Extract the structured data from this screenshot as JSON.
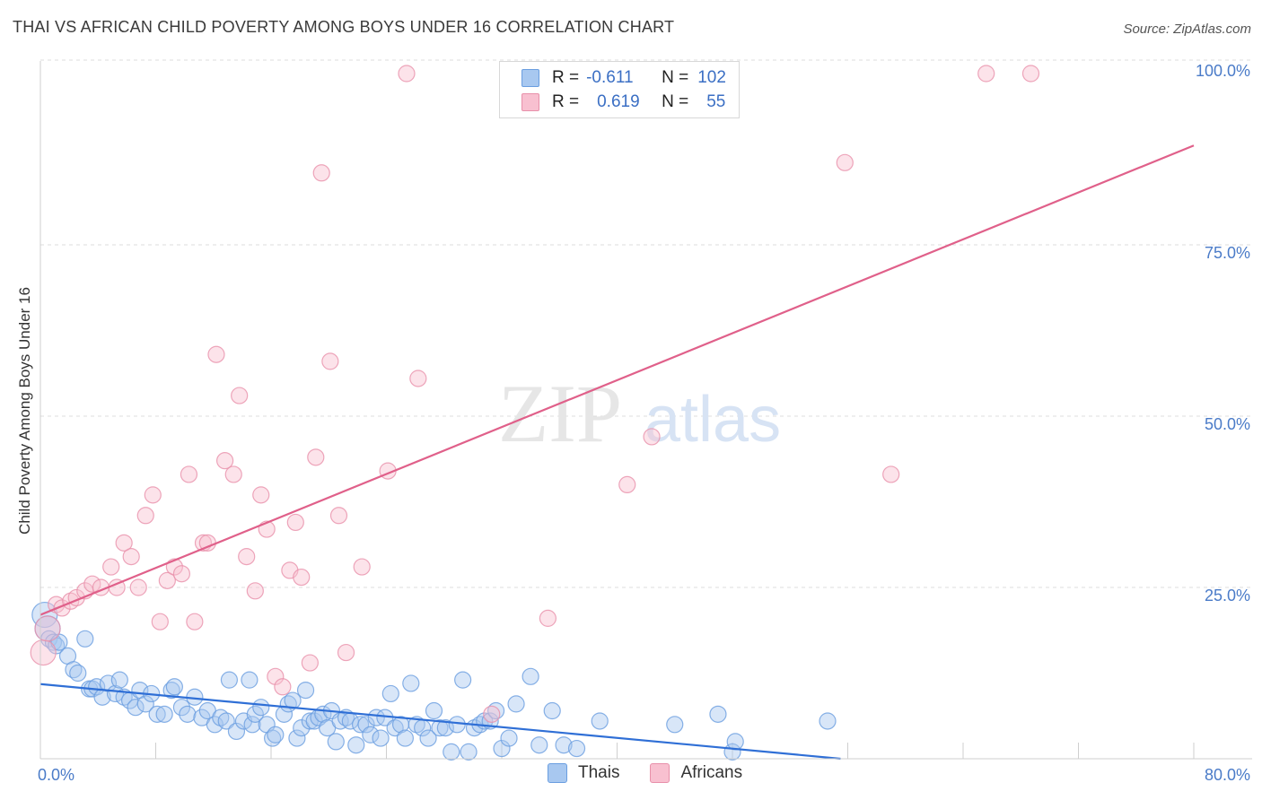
{
  "title": "THAI VS AFRICAN CHILD POVERTY AMONG BOYS UNDER 16 CORRELATION CHART",
  "source": "Source: ZipAtlas.com",
  "watermark": {
    "zip": "ZIP",
    "atlas": "atlas"
  },
  "legend_top": {
    "r_label": "R =",
    "n_label": "N =",
    "rows": [
      {
        "r": "-0.611",
        "n": "102",
        "color": "#a8c8f0",
        "border": "#6a9ee0"
      },
      {
        "r": "0.619",
        "n": "55",
        "color": "#f8c0d0",
        "border": "#e890aa"
      }
    ]
  },
  "legend_bottom": [
    {
      "label": "Thais",
      "color": "#a8c8f0",
      "border": "#6a9ee0"
    },
    {
      "label": "Africans",
      "color": "#f8c0d0",
      "border": "#e890aa"
    }
  ],
  "chart_data": {
    "type": "scatter",
    "title": "THAI VS AFRICAN CHILD POVERTY AMONG BOYS UNDER 16 CORRELATION CHART",
    "xlabel": "",
    "ylabel": "Child Poverty Among Boys Under 16",
    "xlim": [
      0,
      80
    ],
    "ylim": [
      0,
      100
    ],
    "x_tick_labels": [
      "0.0%",
      "80.0%"
    ],
    "y_ticks": [
      25,
      50,
      75,
      100
    ],
    "y_tick_labels": [
      "25.0%",
      "50.0%",
      "75.0%",
      "100.0%"
    ],
    "grid": true,
    "series": [
      {
        "name": "Thais",
        "color": "#6a9ee0",
        "fill": "#a8c8f0",
        "line_color": "#2f6fd6",
        "trend": [
          [
            0,
            10.9
          ],
          [
            55.5,
            0
          ]
        ],
        "points": [
          [
            0.3,
            21
          ],
          [
            0.5,
            19
          ],
          [
            0.6,
            17.5
          ],
          [
            0.9,
            17
          ],
          [
            1.1,
            16.5
          ],
          [
            1.3,
            17
          ],
          [
            1.9,
            15
          ],
          [
            2.3,
            13
          ],
          [
            2.6,
            12.5
          ],
          [
            3.1,
            17.5
          ],
          [
            3.4,
            10.2
          ],
          [
            3.6,
            10.2
          ],
          [
            3.9,
            10.5
          ],
          [
            4.3,
            9
          ],
          [
            4.7,
            11
          ],
          [
            5.2,
            9.5
          ],
          [
            5.5,
            11.5
          ],
          [
            5.8,
            9
          ],
          [
            6.2,
            8.5
          ],
          [
            6.6,
            7.5
          ],
          [
            6.9,
            10
          ],
          [
            7.3,
            8
          ],
          [
            7.7,
            9.5
          ],
          [
            8.1,
            6.5
          ],
          [
            8.6,
            6.5
          ],
          [
            9.1,
            10
          ],
          [
            9.3,
            10.5
          ],
          [
            9.8,
            7.5
          ],
          [
            10.2,
            6.5
          ],
          [
            10.7,
            9
          ],
          [
            11.2,
            6
          ],
          [
            11.6,
            7
          ],
          [
            12.1,
            5
          ],
          [
            12.5,
            6
          ],
          [
            12.9,
            5.5
          ],
          [
            13.1,
            11.5
          ],
          [
            13.6,
            4
          ],
          [
            14.1,
            5.5
          ],
          [
            14.5,
            11.5
          ],
          [
            14.7,
            5
          ],
          [
            14.9,
            6.5
          ],
          [
            15.3,
            7.5
          ],
          [
            15.7,
            5
          ],
          [
            16.1,
            3
          ],
          [
            16.3,
            3.5
          ],
          [
            16.9,
            6.5
          ],
          [
            17.2,
            8
          ],
          [
            17.5,
            8.5
          ],
          [
            17.8,
            3
          ],
          [
            18.1,
            4.5
          ],
          [
            18.4,
            10
          ],
          [
            18.7,
            5.5
          ],
          [
            19.0,
            5.5
          ],
          [
            19.3,
            6
          ],
          [
            19.6,
            6.5
          ],
          [
            19.9,
            4.5
          ],
          [
            20.2,
            7
          ],
          [
            20.5,
            2.5
          ],
          [
            20.8,
            5.5
          ],
          [
            21.2,
            6
          ],
          [
            21.5,
            5.5
          ],
          [
            21.9,
            2
          ],
          [
            22.2,
            5
          ],
          [
            22.6,
            5
          ],
          [
            22.9,
            3.5
          ],
          [
            23.3,
            6
          ],
          [
            23.6,
            3
          ],
          [
            23.9,
            6
          ],
          [
            24.3,
            9.5
          ],
          [
            24.6,
            4.5
          ],
          [
            25.0,
            5
          ],
          [
            25.3,
            3
          ],
          [
            25.7,
            11
          ],
          [
            26.1,
            5
          ],
          [
            26.5,
            4.5
          ],
          [
            26.9,
            3
          ],
          [
            27.3,
            7
          ],
          [
            27.7,
            4.5
          ],
          [
            28.1,
            4.5
          ],
          [
            28.5,
            1
          ],
          [
            28.9,
            5
          ],
          [
            29.3,
            11.5
          ],
          [
            29.7,
            1
          ],
          [
            30.1,
            4.5
          ],
          [
            30.5,
            5
          ],
          [
            30.8,
            5.5
          ],
          [
            31.2,
            5.5
          ],
          [
            31.6,
            7
          ],
          [
            32.0,
            1.5
          ],
          [
            32.5,
            3
          ],
          [
            33.0,
            8
          ],
          [
            34.0,
            12
          ],
          [
            34.6,
            2
          ],
          [
            35.5,
            7
          ],
          [
            36.3,
            2
          ],
          [
            37.2,
            1.5
          ],
          [
            38.8,
            5.5
          ],
          [
            44.0,
            5
          ],
          [
            47.0,
            6.5
          ],
          [
            48.0,
            1
          ],
          [
            48.2,
            2.5
          ],
          [
            54.6,
            5.5
          ]
        ]
      },
      {
        "name": "Africans",
        "color": "#e890aa",
        "fill": "#f8c0d0",
        "line_color": "#e0608a",
        "trend": [
          [
            0,
            21
          ],
          [
            80,
            89.5
          ]
        ],
        "points": [
          [
            0.2,
            15.5
          ],
          [
            0.5,
            19
          ],
          [
            1.1,
            22.5
          ],
          [
            1.5,
            22
          ],
          [
            2.1,
            23
          ],
          [
            2.5,
            23.5
          ],
          [
            3.1,
            24.5
          ],
          [
            3.6,
            25.5
          ],
          [
            4.2,
            25
          ],
          [
            4.9,
            28
          ],
          [
            5.3,
            25
          ],
          [
            5.8,
            31.5
          ],
          [
            6.3,
            29.5
          ],
          [
            6.8,
            25
          ],
          [
            7.3,
            35.5
          ],
          [
            7.8,
            38.5
          ],
          [
            8.3,
            20
          ],
          [
            8.8,
            26
          ],
          [
            9.3,
            28
          ],
          [
            9.8,
            27
          ],
          [
            10.3,
            41.5
          ],
          [
            10.7,
            20
          ],
          [
            11.3,
            31.5
          ],
          [
            11.6,
            31.5
          ],
          [
            12.2,
            59
          ],
          [
            12.8,
            43.5
          ],
          [
            13.4,
            41.5
          ],
          [
            13.8,
            53
          ],
          [
            14.3,
            29.5
          ],
          [
            14.9,
            24.5
          ],
          [
            15.3,
            38.5
          ],
          [
            15.7,
            33.5
          ],
          [
            16.3,
            12
          ],
          [
            16.8,
            10.5
          ],
          [
            17.3,
            27.5
          ],
          [
            17.7,
            34.5
          ],
          [
            18.1,
            26.5
          ],
          [
            18.7,
            14
          ],
          [
            19.1,
            44
          ],
          [
            19.5,
            85.5
          ],
          [
            20.1,
            58
          ],
          [
            20.7,
            35.5
          ],
          [
            21.2,
            15.5
          ],
          [
            22.3,
            28
          ],
          [
            24.1,
            42
          ],
          [
            25.4,
            100
          ],
          [
            26.2,
            55.5
          ],
          [
            31.3,
            6.5
          ],
          [
            35.2,
            20.5
          ],
          [
            40.7,
            40
          ],
          [
            42.4,
            47
          ],
          [
            55.8,
            87
          ],
          [
            59.0,
            41.5
          ],
          [
            65.6,
            100
          ],
          [
            68.7,
            100
          ]
        ]
      }
    ]
  }
}
